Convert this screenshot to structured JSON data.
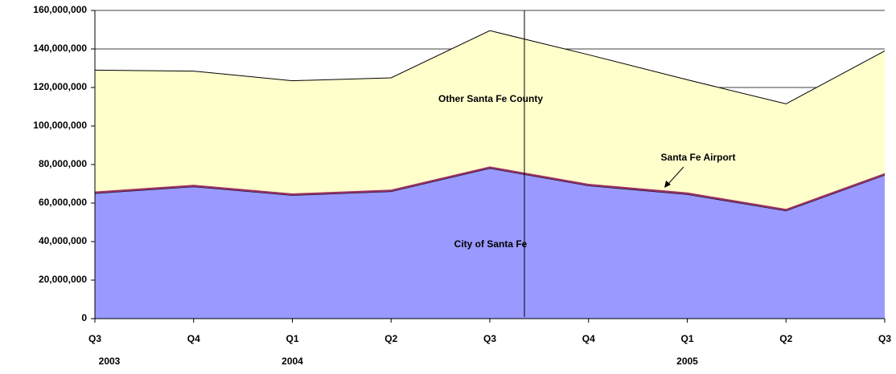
{
  "chart_data": {
    "type": "stacked_area",
    "categories": [
      "Q3",
      "Q4",
      "Q1",
      "Q2",
      "Q3",
      "Q4",
      "Q1",
      "Q2",
      "Q3"
    ],
    "year_labels": [
      "2003",
      null,
      "2004",
      null,
      null,
      null,
      "2005",
      null,
      null
    ],
    "series": [
      {
        "name": "City of Santa Fe",
        "color": "#9999ff",
        "values": [
          65000000,
          68500000,
          64000000,
          66000000,
          78000000,
          69000000,
          64500000,
          56000000,
          74500000
        ]
      },
      {
        "name": "Santa Fe Airport",
        "color": "#993366",
        "values": [
          1000000,
          1000000,
          1000000,
          1000000,
          1000000,
          1000000,
          1000000,
          1000000,
          1000000
        ]
      },
      {
        "name": "Other Santa Fe County",
        "color": "#ffffcc",
        "values": [
          63000000,
          59000000,
          58500000,
          58000000,
          70500000,
          67000000,
          58500000,
          54500000,
          63500000
        ]
      }
    ],
    "ylim": [
      0,
      160000000
    ],
    "yticks": [
      {
        "value": 0,
        "label": "0"
      },
      {
        "value": 20000000,
        "label": "20,000,000"
      },
      {
        "value": 40000000,
        "label": "40,000,000"
      },
      {
        "value": 60000000,
        "label": "60,000,000"
      },
      {
        "value": 80000000,
        "label": "80,000,000"
      },
      {
        "value": 100000000,
        "label": "100,000,000"
      },
      {
        "value": 120000000,
        "label": "120,000,000"
      },
      {
        "value": 140000000,
        "label": "140,000,000"
      },
      {
        "value": 160000000,
        "label": "160,000,000"
      }
    ],
    "grid": true
  }
}
